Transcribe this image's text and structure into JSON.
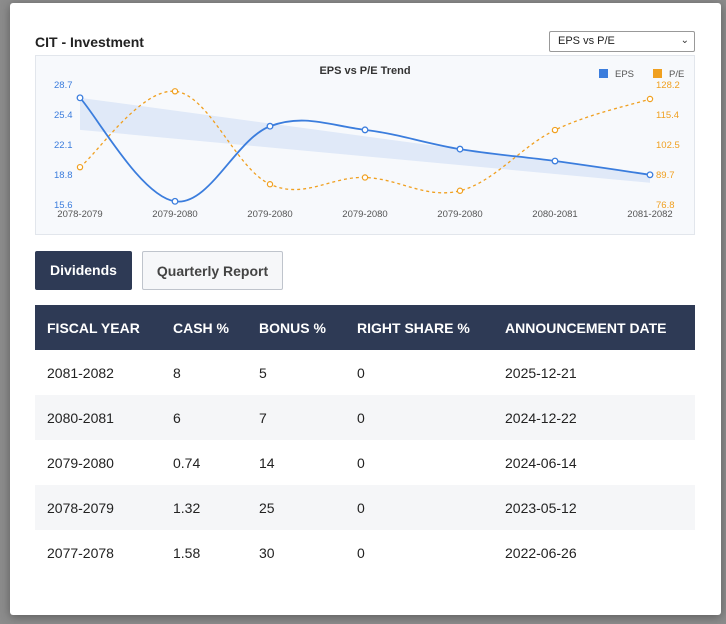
{
  "modal": {
    "title": "CIT - Investment",
    "chart_selector": {
      "selected": "EPS vs P/E"
    }
  },
  "chart_data": {
    "type": "line",
    "title": "EPS vs P/E Trend",
    "categories": [
      "2078-2079",
      "2079-2080",
      "2079-2080",
      "2079-2080",
      "2079-2080",
      "2080-2081",
      "2081-2082"
    ],
    "series": [
      {
        "name": "EPS",
        "axis": "left",
        "color": "#3b7ddd",
        "values": [
          27.3,
          16.0,
          24.2,
          23.8,
          21.7,
          20.4,
          18.9
        ]
      },
      {
        "name": "P/E",
        "axis": "right",
        "color": "#f0a020",
        "values": [
          93.0,
          125.5,
          85.7,
          88.6,
          82.9,
          108.9,
          122.2
        ]
      }
    ],
    "y_left": {
      "ticks": [
        "28.7",
        "25.4",
        "22.1",
        "18.8",
        "15.6"
      ],
      "min": 15.6,
      "max": 28.7
    },
    "y_right": {
      "ticks": [
        "128.2",
        "115.4",
        "102.5",
        "89.7",
        "76.8"
      ],
      "min": 76.8,
      "max": 128.2
    },
    "legend": [
      "EPS",
      "P/E"
    ]
  },
  "tabs": [
    {
      "label": "Dividends",
      "active": true
    },
    {
      "label": "Quarterly Report",
      "active": false
    }
  ],
  "table": {
    "headers": [
      "FISCAL YEAR",
      "CASH %",
      "BONUS %",
      "RIGHT SHARE %",
      "ANNOUNCEMENT DATE"
    ],
    "rows": [
      [
        "2081-2082",
        "8",
        "5",
        "0",
        "2025-12-21"
      ],
      [
        "2080-2081",
        "6",
        "7",
        "0",
        "2024-12-22"
      ],
      [
        "2079-2080",
        "0.74",
        "14",
        "0",
        "2024-06-14"
      ],
      [
        "2078-2079",
        "1.32",
        "25",
        "0",
        "2023-05-12"
      ],
      [
        "2077-2078",
        "1.58",
        "30",
        "0",
        "2022-06-26"
      ]
    ]
  }
}
